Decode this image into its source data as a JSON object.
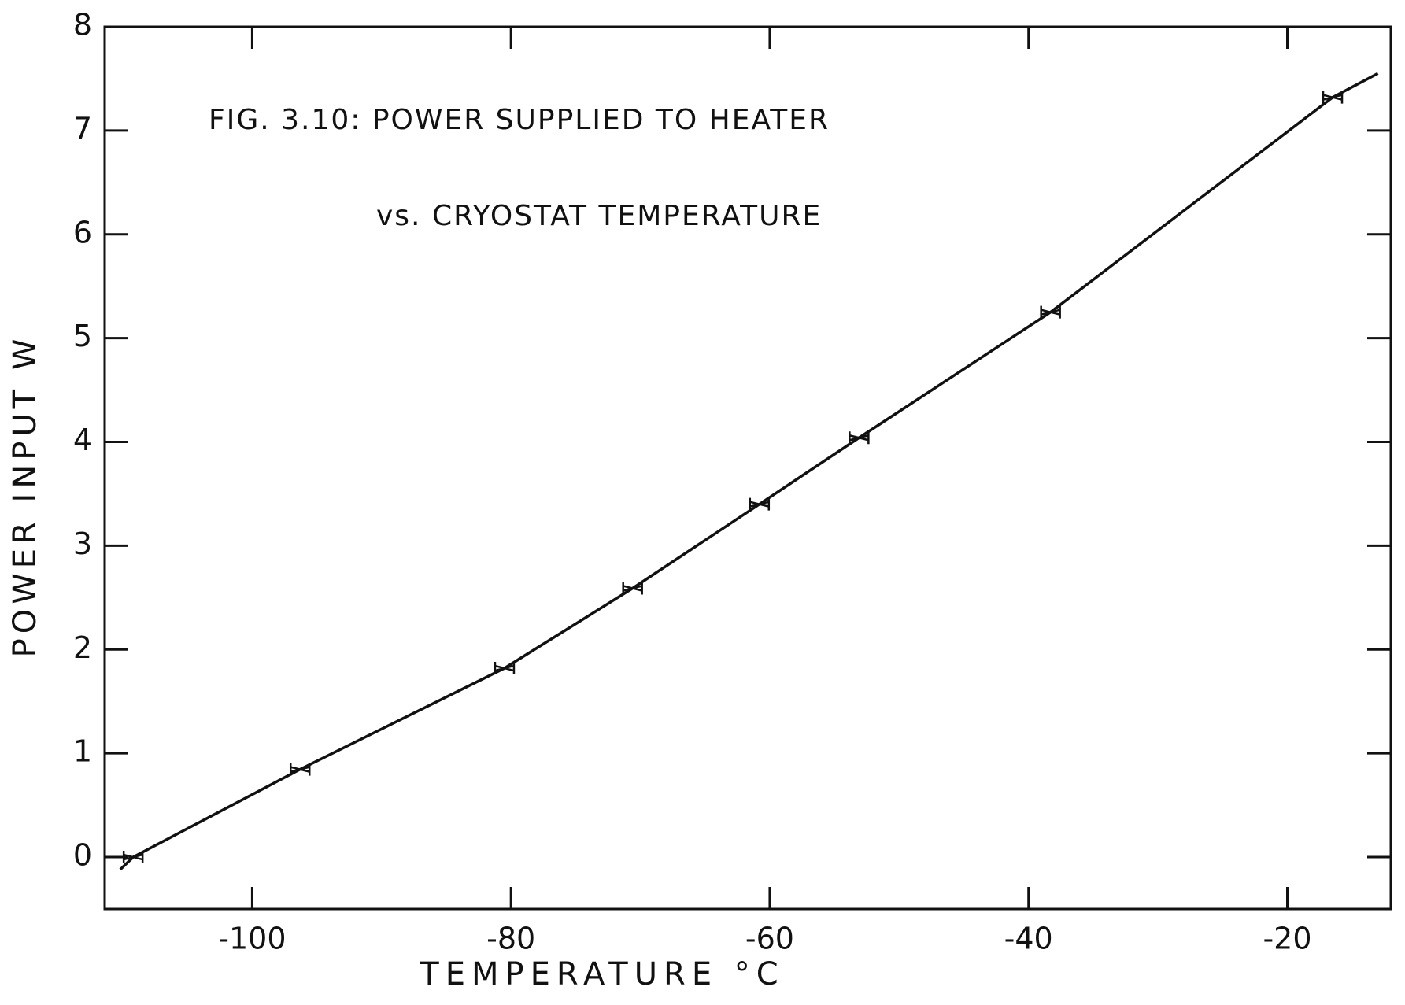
{
  "chart_data": {
    "type": "line",
    "title": "FIG. 3.10: POWER SUPPLIED TO HEATER",
    "subtitle": "vs. CRYOSTAT TEMPERATURE",
    "xlabel": "TEMPERATURE   °C",
    "ylabel": "POWER INPUT  W",
    "xlim": [
      -111.4,
      -12
    ],
    "ylim": [
      -0.5,
      8
    ],
    "xticks": [
      -100,
      -80,
      -60,
      -40,
      -20
    ],
    "yticks": [
      0,
      1,
      2,
      3,
      4,
      5,
      6,
      7,
      8
    ],
    "series": [
      {
        "type": "line",
        "color": "#111111",
        "x": [
          -110.2,
          -109.2,
          -96.3,
          -80.5,
          -70.6,
          -60.8,
          -53.1,
          -38.3,
          -16.5,
          -13
        ],
        "values": [
          -0.12,
          0,
          0.845,
          1.82,
          2.59,
          3.4,
          4.04,
          5.25,
          7.32,
          7.55
        ]
      },
      {
        "type": "scatter",
        "color": "#111111",
        "x": [
          -109.2,
          -96.3,
          -80.5,
          -70.6,
          -60.8,
          -53.1,
          -38.3,
          -16.5
        ],
        "values": [
          0,
          0.845,
          1.82,
          2.59,
          3.4,
          4.04,
          5.25,
          7.32
        ]
      }
    ]
  }
}
